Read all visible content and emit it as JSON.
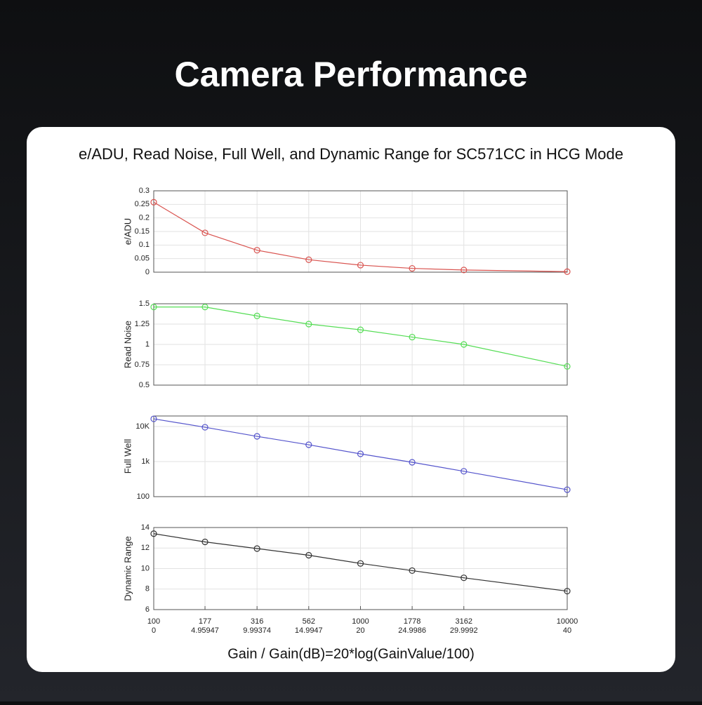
{
  "page_title": "Camera Performance",
  "subtitle": "e/ADU, Read Noise, Full Well, and Dynamic Range for SC571CC in HCG Mode",
  "chart_data": [
    {
      "type": "line",
      "ylabel": "e/ADU",
      "xscale": "log",
      "xlim": [
        100,
        10000
      ],
      "x": [
        100,
        177,
        316,
        562,
        1000,
        1778,
        3162,
        10000
      ],
      "series": [
        {
          "name": "e/ADU",
          "color": "#d9534f",
          "values": [
            0.258,
            0.145,
            0.081,
            0.046,
            0.026,
            0.014,
            0.008,
            0.002
          ]
        }
      ],
      "ylim": [
        0,
        0.3
      ],
      "yticks": [
        0,
        0.05,
        0.1,
        0.15,
        0.2,
        0.25,
        0.3
      ],
      "grid": true
    },
    {
      "type": "line",
      "ylabel": "Read Noise",
      "xscale": "log",
      "xlim": [
        100,
        10000
      ],
      "x": [
        100,
        177,
        316,
        562,
        1000,
        1778,
        3162,
        10000
      ],
      "series": [
        {
          "name": "Read Noise",
          "color": "#55dd55",
          "values": [
            1.46,
            1.46,
            1.35,
            1.25,
            1.18,
            1.09,
            1.0,
            0.73
          ]
        }
      ],
      "ylim": [
        0.5,
        1.5
      ],
      "yticks": [
        0.5,
        0.75,
        1,
        1.25,
        1.5
      ],
      "grid": true
    },
    {
      "type": "line",
      "ylabel": "Full Well",
      "xscale": "log",
      "yscale": "log",
      "xlim": [
        100,
        10000
      ],
      "x": [
        100,
        177,
        316,
        562,
        1000,
        1778,
        3162,
        10000
      ],
      "series": [
        {
          "name": "Full Well",
          "color": "#5555cc",
          "values": [
            16600,
            9550,
            5250,
            3020,
            1660,
            955,
            530,
            158
          ]
        }
      ],
      "ylim": [
        100,
        20000
      ],
      "yticks": [
        100,
        {
          "value": 1000,
          "label": "1k"
        },
        {
          "value": 10000,
          "label": "10K"
        }
      ],
      "grid": true
    },
    {
      "type": "line",
      "ylabel": "Dynamic Range",
      "xscale": "log",
      "xlim": [
        100,
        10000
      ],
      "x": [
        100,
        177,
        316,
        562,
        1000,
        1778,
        3162,
        10000
      ],
      "series": [
        {
          "name": "Dynamic Range",
          "color": "#333333",
          "values": [
            13.4,
            12.6,
            11.95,
            11.3,
            10.5,
            9.8,
            9.1,
            7.8
          ]
        }
      ],
      "ylim": [
        6,
        14
      ],
      "yticks": [
        6,
        8,
        10,
        12,
        14
      ],
      "grid": true,
      "xticks": [
        100,
        177,
        316,
        562,
        1000,
        1778,
        3162,
        10000
      ],
      "xticks_db": [
        0,
        4.95947,
        9.99374,
        14.9947,
        20,
        24.9986,
        29.9992,
        40
      ],
      "xlabel": "Gain / Gain(dB)=20*log(GainValue/100)"
    }
  ]
}
